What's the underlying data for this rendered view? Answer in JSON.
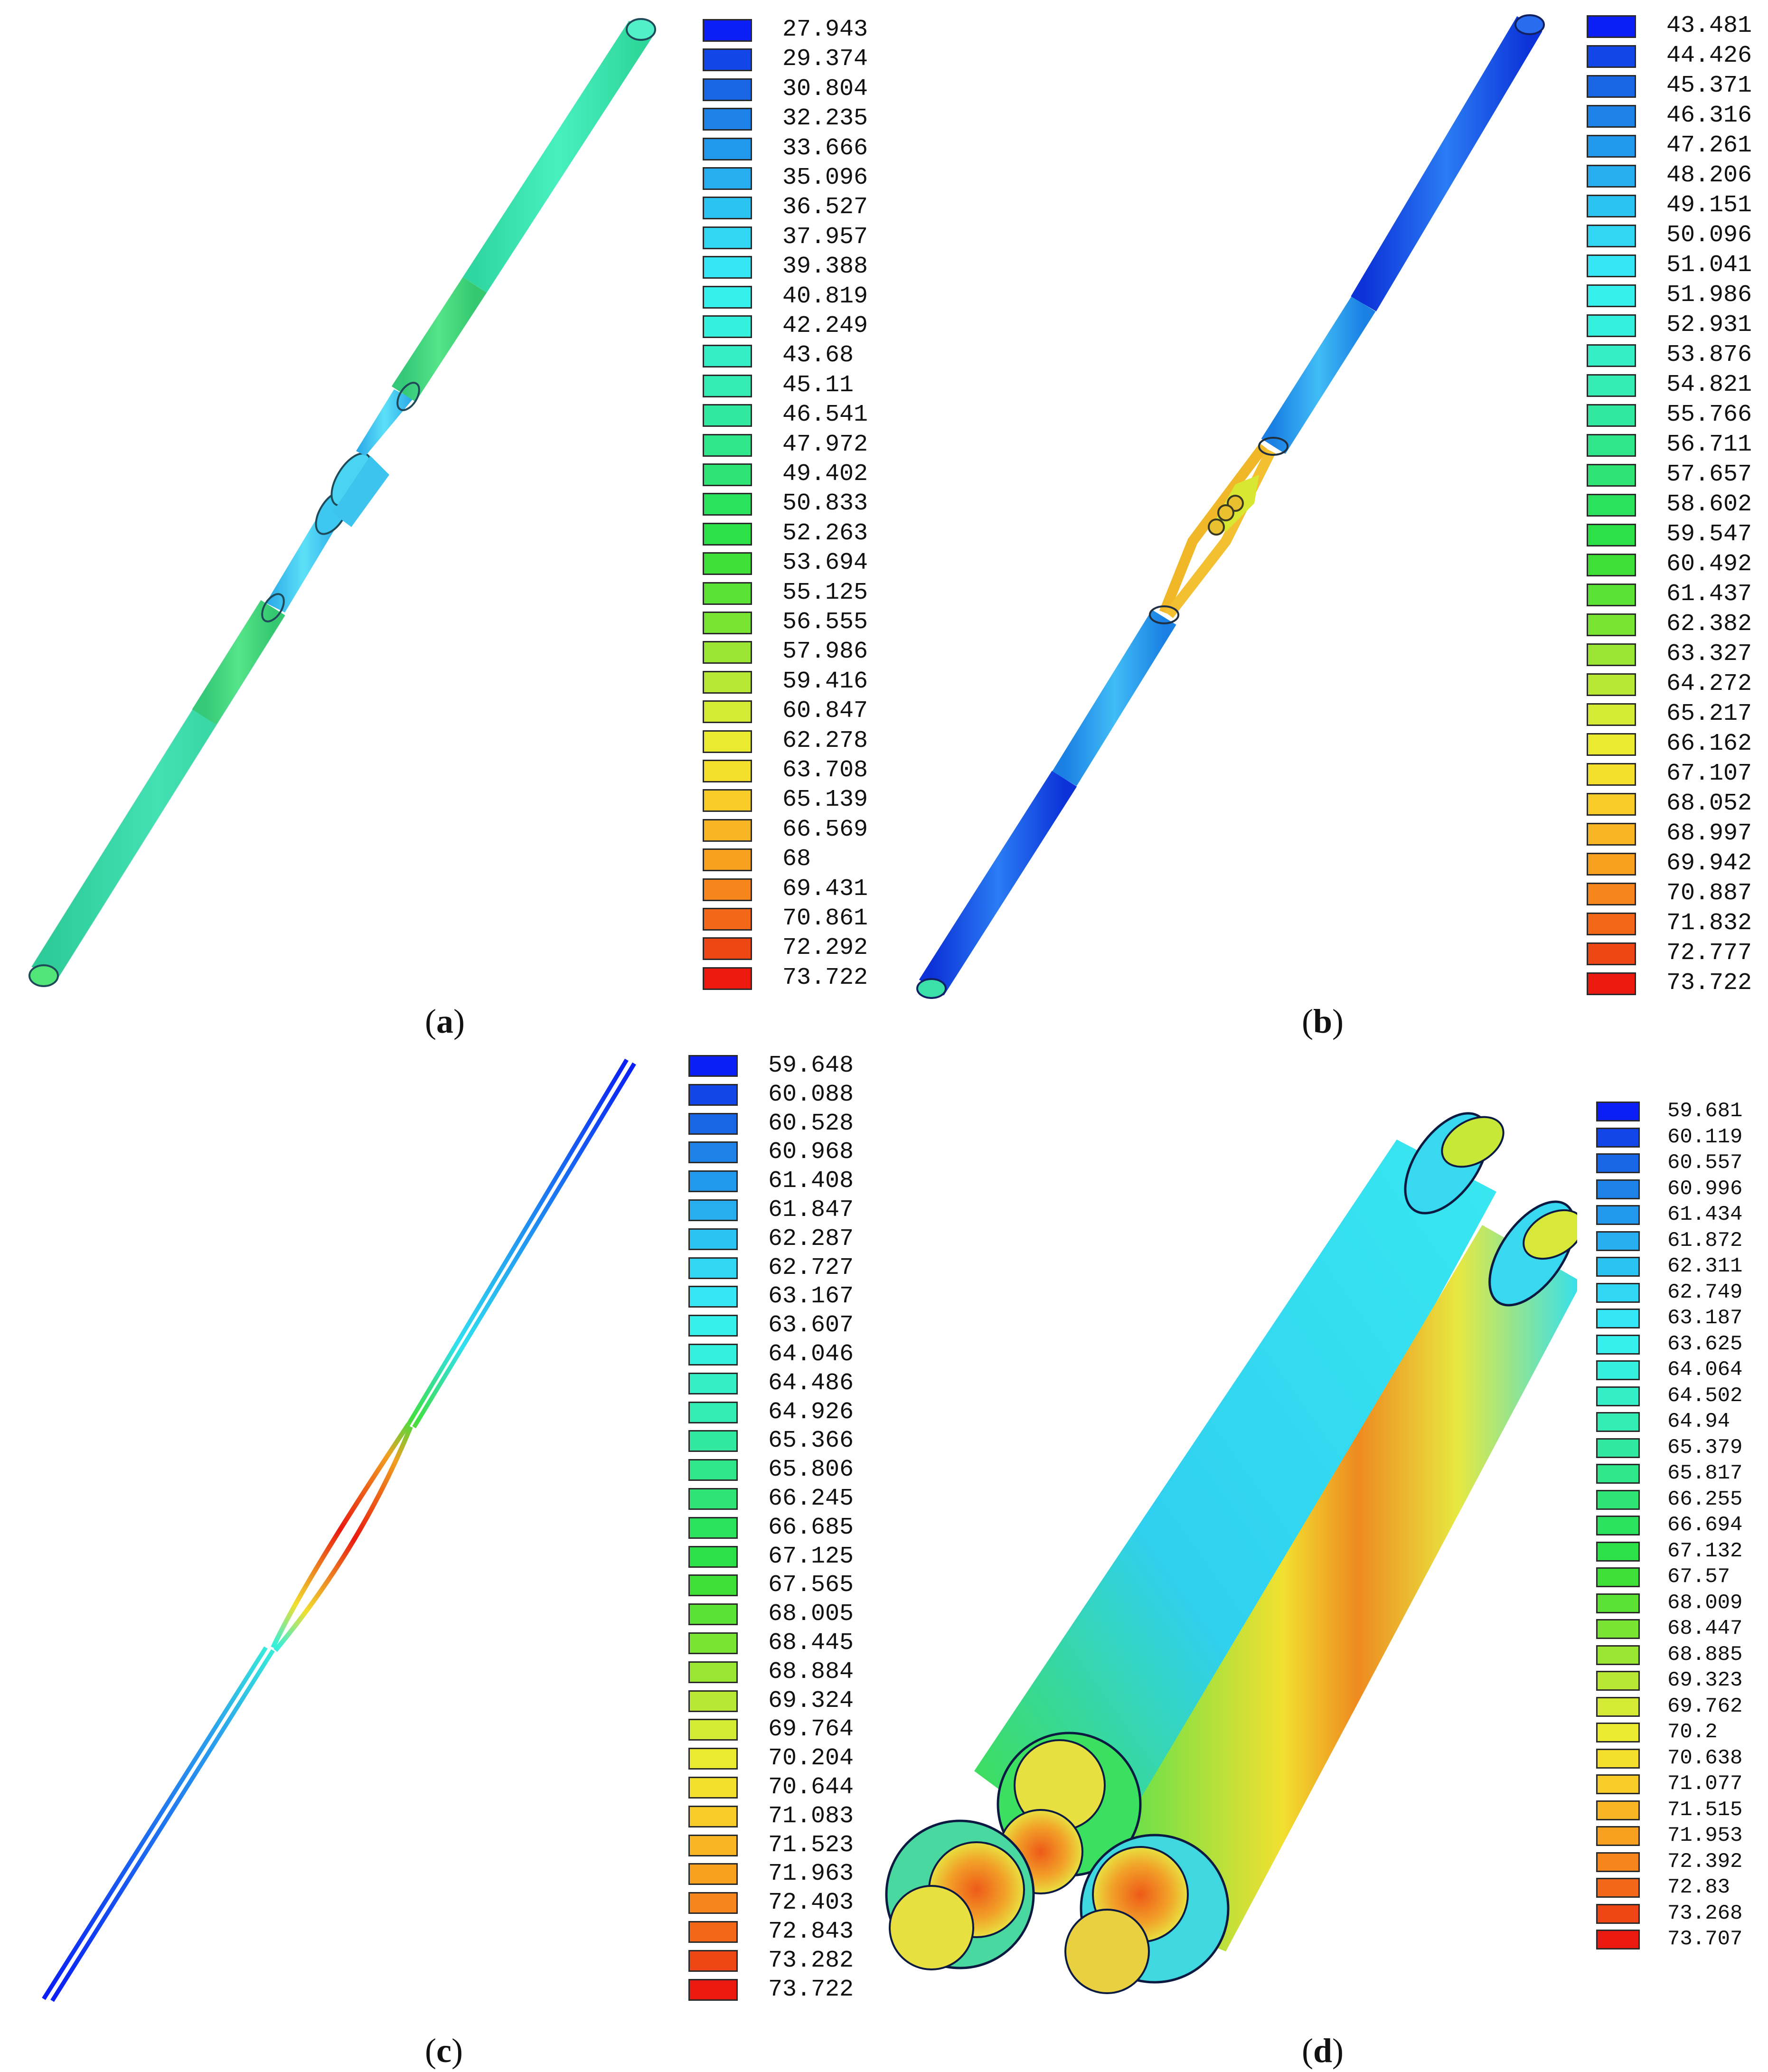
{
  "panels": [
    {
      "id": "a",
      "caption_letter": "a",
      "legend_values": [
        "27.943",
        "29.374",
        "30.804",
        "32.235",
        "33.666",
        "35.096",
        "36.527",
        "37.957",
        "39.388",
        "40.819",
        "42.249",
        "43.68",
        "45.11",
        "46.541",
        "47.972",
        "49.402",
        "50.833",
        "52.263",
        "53.694",
        "55.125",
        "56.555",
        "57.986",
        "59.416",
        "60.847",
        "62.278",
        "63.708",
        "65.139",
        "66.569",
        "68",
        "69.431",
        "70.861",
        "72.292",
        "73.722"
      ]
    },
    {
      "id": "b",
      "caption_letter": "b",
      "legend_values": [
        "43.481",
        "44.426",
        "45.371",
        "46.316",
        "47.261",
        "48.206",
        "49.151",
        "50.096",
        "51.041",
        "51.986",
        "52.931",
        "53.876",
        "54.821",
        "55.766",
        "56.711",
        "57.657",
        "58.602",
        "59.547",
        "60.492",
        "61.437",
        "62.382",
        "63.327",
        "64.272",
        "65.217",
        "66.162",
        "67.107",
        "68.052",
        "68.997",
        "69.942",
        "70.887",
        "71.832",
        "72.777",
        "73.722"
      ]
    },
    {
      "id": "c",
      "caption_letter": "c",
      "legend_values": [
        "59.648",
        "60.088",
        "60.528",
        "60.968",
        "61.408",
        "61.847",
        "62.287",
        "62.727",
        "63.167",
        "63.607",
        "64.046",
        "64.486",
        "64.926",
        "65.366",
        "65.806",
        "66.245",
        "66.685",
        "67.125",
        "67.565",
        "68.005",
        "68.445",
        "68.884",
        "69.324",
        "69.764",
        "70.204",
        "70.644",
        "71.083",
        "71.523",
        "71.963",
        "72.403",
        "72.843",
        "73.282",
        "73.722"
      ]
    },
    {
      "id": "d",
      "caption_letter": "d",
      "legend_values": [
        "59.681",
        "60.119",
        "60.557",
        "60.996",
        "61.434",
        "61.872",
        "62.311",
        "62.749",
        "63.187",
        "63.625",
        "64.064",
        "64.502",
        "64.94",
        "65.379",
        "65.817",
        "66.255",
        "66.694",
        "67.132",
        "67.57",
        "68.009",
        "68.447",
        "68.885",
        "69.323",
        "69.762",
        "70.2",
        "70.638",
        "71.077",
        "71.515",
        "71.953",
        "72.392",
        "72.83",
        "73.268",
        "73.707"
      ]
    }
  ],
  "colormap": [
    "#0a1ef5",
    "#1246e8",
    "#1866e6",
    "#1d82e8",
    "#2298ec",
    "#26aef0",
    "#2bc4f2",
    "#30d6f4",
    "#34e6f6",
    "#36f0ee",
    "#35f0dc",
    "#34eec8",
    "#33ecb4",
    "#31e8a0",
    "#2fe68a",
    "#2de474",
    "#2be25e",
    "#2ce048",
    "#3ee038",
    "#5ce234",
    "#7ae432",
    "#9ae632",
    "#b8e834",
    "#d4ea34",
    "#eaea30",
    "#f4e02c",
    "#f8cc28",
    "#f8b624",
    "#f8a020",
    "#f6861c",
    "#f26818",
    "#ee4614",
    "#ea1a10"
  ],
  "figure_colors": {
    "a_pipe": "#3de8b0",
    "a_pipe_shade": "#2fd69a",
    "a_joint": "#45d873",
    "a_center": "#3cc8f0",
    "b_pipe": "#1450ec",
    "b_pipe_mid": "#2aa0ee",
    "b_center": "#f2b824",
    "c_end": "#1a3ae8",
    "c_mid": "#ea1a10",
    "d_body_left": "#30d0f0",
    "d_body_right": "#f2b830",
    "d_core": "#ee7a20"
  }
}
